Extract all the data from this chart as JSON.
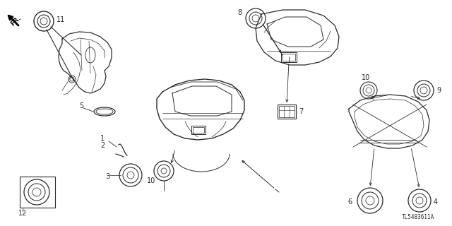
{
  "bg_color": "#ffffff",
  "line_color": "#2a2a2a",
  "watermark": "TL5483611A",
  "fig_w": 6.4,
  "fig_h": 3.2,
  "dpi": 100
}
